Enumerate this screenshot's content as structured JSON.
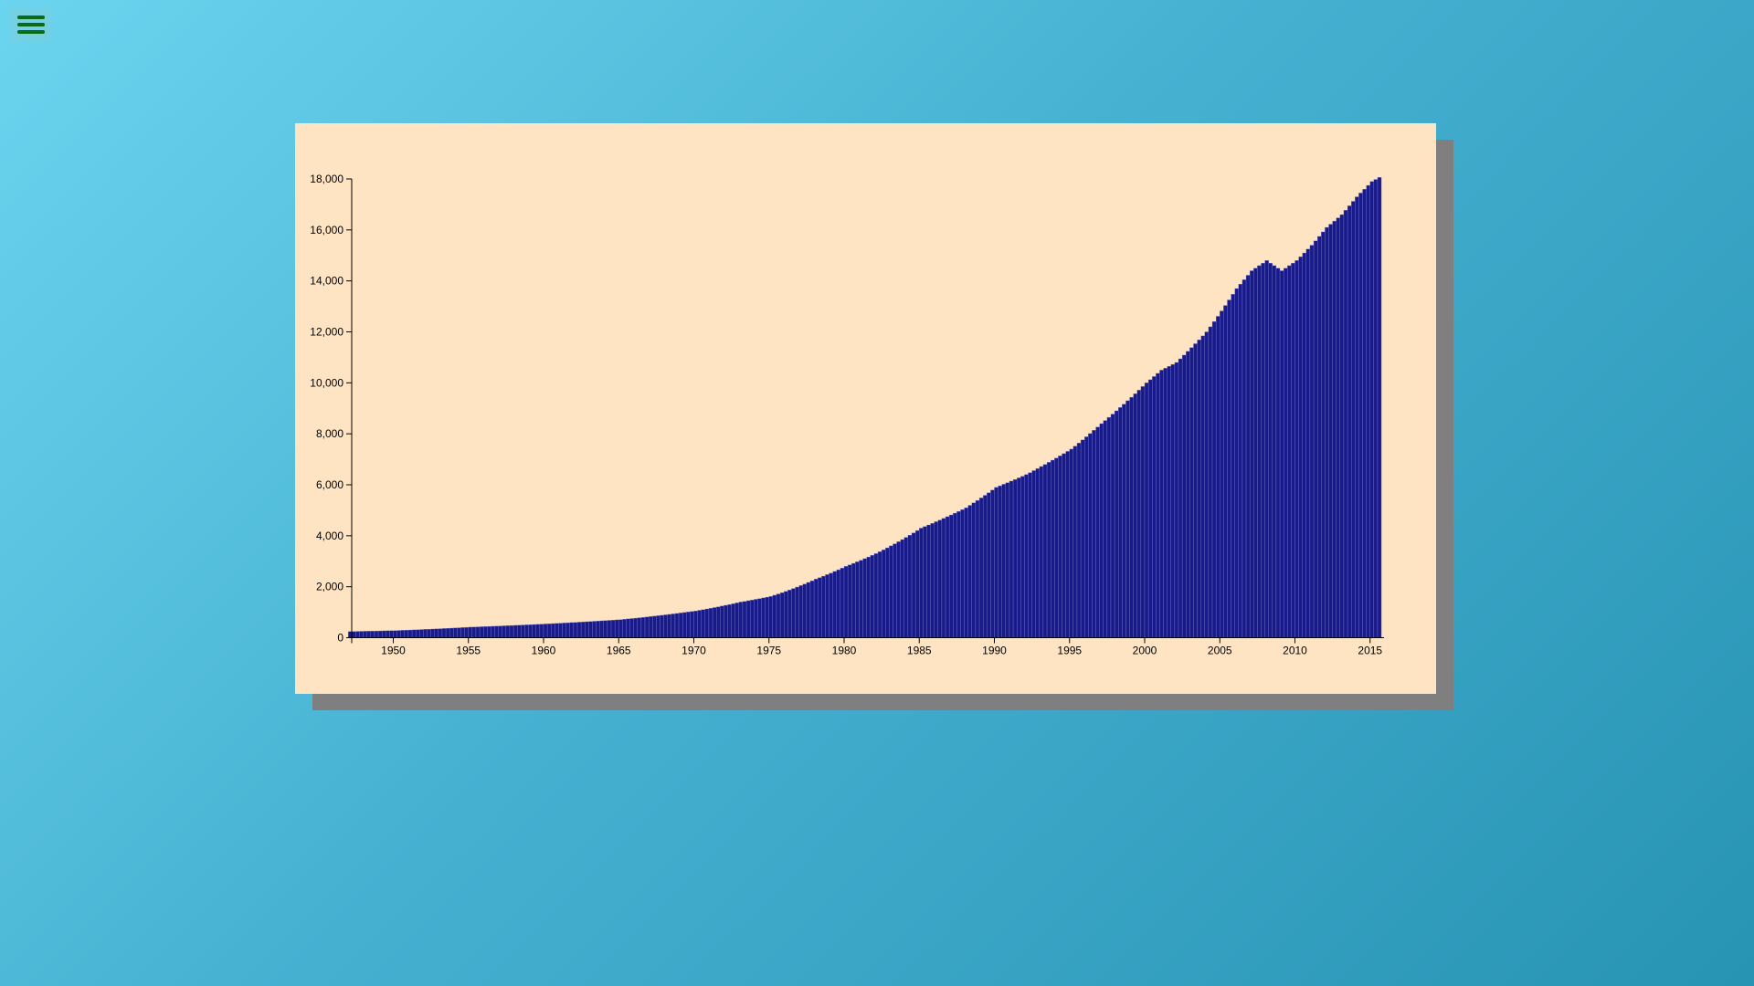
{
  "menu": {
    "icon": "hamburger-menu-icon"
  },
  "colors": {
    "bar_fill": "#191a8a",
    "bar_stroke": "#7b7fcf",
    "card_background": "#ffe4c4",
    "shadow": "#7f7f7f",
    "menu_icon": "#0a6a15"
  },
  "chart_data": {
    "type": "bar",
    "title": "",
    "xlabel": "",
    "ylabel": "",
    "bar_interval": "quarterly",
    "x_range": [
      1947.0,
      2015.5
    ],
    "ylim": [
      0,
      18000
    ],
    "grid": false,
    "y_ticks": [
      "0",
      "2,000",
      "4,000",
      "6,000",
      "8,000",
      "10,000",
      "12,000",
      "14,000",
      "16,000",
      "18,000"
    ],
    "x_ticks": [
      "1950",
      "1955",
      "1960",
      "1965",
      "1970",
      "1975",
      "1980",
      "1985",
      "1990",
      "1995",
      "2000",
      "2005",
      "2010",
      "2015"
    ],
    "anchors": [
      [
        1947,
        243
      ],
      [
        1950,
        280
      ],
      [
        1955,
        415
      ],
      [
        1960,
        540
      ],
      [
        1965,
        710
      ],
      [
        1970,
        1050
      ],
      [
        1973,
        1400
      ],
      [
        1975,
        1620
      ],
      [
        1978,
        2300
      ],
      [
        1980,
        2800
      ],
      [
        1982,
        3300
      ],
      [
        1985,
        4300
      ],
      [
        1988,
        5100
      ],
      [
        1990,
        5900
      ],
      [
        1992,
        6400
      ],
      [
        1995,
        7400
      ],
      [
        1997,
        8400
      ],
      [
        2000,
        10000
      ],
      [
        2001,
        10500
      ],
      [
        2002,
        10800
      ],
      [
        2004,
        12000
      ],
      [
        2006,
        13700
      ],
      [
        2007,
        14400
      ],
      [
        2008,
        14800
      ],
      [
        2009,
        14400
      ],
      [
        2010,
        14800
      ],
      [
        2011,
        15400
      ],
      [
        2012,
        16100
      ],
      [
        2013,
        16600
      ],
      [
        2014,
        17300
      ],
      [
        2015,
        17900
      ],
      [
        2015.5,
        18060
      ]
    ]
  }
}
